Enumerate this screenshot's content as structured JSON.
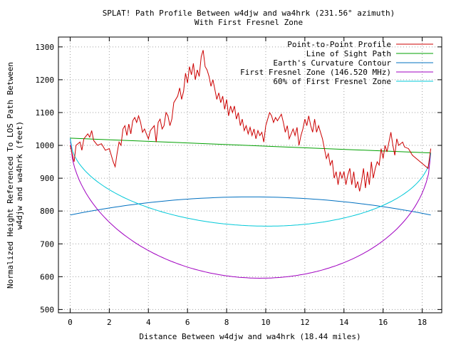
{
  "chart_data": {
    "type": "line",
    "title": "SPLAT! Path Profile Between w4djw and wa4hrk (231.56° azimuth)",
    "subtitle": "With First Fresnel Zone",
    "xlabel": "Distance Between w4djw and wa4hrk (18.44 miles)",
    "ylabel_line1": "Normalized Height Referenced To LOS Path Between",
    "ylabel_line2": "w4djw and wa4hrk (feet)",
    "xlim": [
      -0.6,
      19.0
    ],
    "ylim": [
      490,
      1330
    ],
    "xticks": [
      0,
      2,
      4,
      6,
      8,
      10,
      12,
      14,
      16,
      18
    ],
    "yticks": [
      500,
      600,
      700,
      800,
      900,
      1000,
      1100,
      1200,
      1300
    ],
    "grid": true,
    "legend_position": "top-right",
    "series": [
      {
        "name": "Point-to-Point Profile",
        "color": "#cc0000",
        "points": [
          [
            0,
            1000
          ],
          [
            0.2,
            950
          ],
          [
            0.3,
            1000
          ],
          [
            0.5,
            1010
          ],
          [
            0.6,
            985
          ],
          [
            0.7,
            1020
          ],
          [
            0.9,
            1035
          ],
          [
            1.0,
            1025
          ],
          [
            1.1,
            1045
          ],
          [
            1.2,
            1015
          ],
          [
            1.4,
            1000
          ],
          [
            1.6,
            1005
          ],
          [
            1.8,
            985
          ],
          [
            2.0,
            990
          ],
          [
            2.2,
            950
          ],
          [
            2.3,
            935
          ],
          [
            2.4,
            975
          ],
          [
            2.5,
            1010
          ],
          [
            2.6,
            1000
          ],
          [
            2.7,
            1050
          ],
          [
            2.8,
            1060
          ],
          [
            2.9,
            1030
          ],
          [
            3.0,
            1065
          ],
          [
            3.1,
            1035
          ],
          [
            3.2,
            1075
          ],
          [
            3.3,
            1085
          ],
          [
            3.4,
            1070
          ],
          [
            3.5,
            1090
          ],
          [
            3.6,
            1070
          ],
          [
            3.7,
            1040
          ],
          [
            3.8,
            1050
          ],
          [
            3.9,
            1035
          ],
          [
            4.0,
            1020
          ],
          [
            4.1,
            1045
          ],
          [
            4.3,
            1060
          ],
          [
            4.4,
            1010
          ],
          [
            4.5,
            1070
          ],
          [
            4.6,
            1080
          ],
          [
            4.7,
            1050
          ],
          [
            4.8,
            1060
          ],
          [
            4.9,
            1100
          ],
          [
            5.0,
            1090
          ],
          [
            5.1,
            1060
          ],
          [
            5.2,
            1080
          ],
          [
            5.3,
            1130
          ],
          [
            5.5,
            1150
          ],
          [
            5.6,
            1175
          ],
          [
            5.7,
            1140
          ],
          [
            5.8,
            1165
          ],
          [
            5.9,
            1220
          ],
          [
            6.0,
            1190
          ],
          [
            6.1,
            1240
          ],
          [
            6.2,
            1215
          ],
          [
            6.3,
            1250
          ],
          [
            6.4,
            1200
          ],
          [
            6.5,
            1230
          ],
          [
            6.6,
            1210
          ],
          [
            6.7,
            1270
          ],
          [
            6.8,
            1290
          ],
          [
            6.9,
            1240
          ],
          [
            7.0,
            1230
          ],
          [
            7.1,
            1210
          ],
          [
            7.2,
            1180
          ],
          [
            7.3,
            1200
          ],
          [
            7.4,
            1170
          ],
          [
            7.5,
            1140
          ],
          [
            7.6,
            1160
          ],
          [
            7.7,
            1130
          ],
          [
            7.8,
            1150
          ],
          [
            7.9,
            1110
          ],
          [
            8.0,
            1140
          ],
          [
            8.1,
            1090
          ],
          [
            8.2,
            1120
          ],
          [
            8.3,
            1100
          ],
          [
            8.4,
            1120
          ],
          [
            8.5,
            1080
          ],
          [
            8.6,
            1100
          ],
          [
            8.7,
            1060
          ],
          [
            8.8,
            1080
          ],
          [
            8.9,
            1045
          ],
          [
            9.0,
            1060
          ],
          [
            9.1,
            1035
          ],
          [
            9.2,
            1055
          ],
          [
            9.3,
            1030
          ],
          [
            9.4,
            1050
          ],
          [
            9.5,
            1020
          ],
          [
            9.6,
            1045
          ],
          [
            9.7,
            1030
          ],
          [
            9.8,
            1040
          ],
          [
            9.9,
            1010
          ],
          [
            10.0,
            1060
          ],
          [
            10.1,
            1080
          ],
          [
            10.2,
            1100
          ],
          [
            10.3,
            1090
          ],
          [
            10.4,
            1070
          ],
          [
            10.5,
            1085
          ],
          [
            10.6,
            1075
          ],
          [
            10.8,
            1095
          ],
          [
            10.9,
            1070
          ],
          [
            11.0,
            1040
          ],
          [
            11.1,
            1060
          ],
          [
            11.2,
            1020
          ],
          [
            11.4,
            1050
          ],
          [
            11.5,
            1030
          ],
          [
            11.6,
            1055
          ],
          [
            11.7,
            1000
          ],
          [
            11.8,
            1030
          ],
          [
            11.9,
            1050
          ],
          [
            12.0,
            1080
          ],
          [
            12.1,
            1060
          ],
          [
            12.2,
            1090
          ],
          [
            12.3,
            1060
          ],
          [
            12.4,
            1040
          ],
          [
            12.5,
            1080
          ],
          [
            12.6,
            1040
          ],
          [
            12.7,
            1060
          ],
          [
            12.8,
            1040
          ],
          [
            12.9,
            1020
          ],
          [
            13.0,
            990
          ],
          [
            13.1,
            960
          ],
          [
            13.2,
            975
          ],
          [
            13.3,
            940
          ],
          [
            13.4,
            955
          ],
          [
            13.5,
            900
          ],
          [
            13.6,
            920
          ],
          [
            13.7,
            880
          ],
          [
            13.8,
            920
          ],
          [
            13.9,
            900
          ],
          [
            14.0,
            920
          ],
          [
            14.1,
            880
          ],
          [
            14.2,
            910
          ],
          [
            14.3,
            930
          ],
          [
            14.4,
            880
          ],
          [
            14.5,
            920
          ],
          [
            14.6,
            870
          ],
          [
            14.7,
            890
          ],
          [
            14.8,
            860
          ],
          [
            14.9,
            890
          ],
          [
            15.0,
            930
          ],
          [
            15.1,
            870
          ],
          [
            15.2,
            920
          ],
          [
            15.3,
            880
          ],
          [
            15.4,
            950
          ],
          [
            15.5,
            900
          ],
          [
            15.6,
            930
          ],
          [
            15.7,
            950
          ],
          [
            15.8,
            940
          ],
          [
            15.9,
            990
          ],
          [
            16.0,
            960
          ],
          [
            16.1,
            1000
          ],
          [
            16.2,
            980
          ],
          [
            16.3,
            1010
          ],
          [
            16.4,
            1040
          ],
          [
            16.5,
            1000
          ],
          [
            16.6,
            970
          ],
          [
            16.7,
            1020
          ],
          [
            16.8,
            1000
          ],
          [
            17.0,
            1010
          ],
          [
            17.1,
            995
          ],
          [
            17.3,
            990
          ],
          [
            17.5,
            970
          ],
          [
            17.7,
            960
          ],
          [
            17.9,
            950
          ],
          [
            18.1,
            940
          ],
          [
            18.3,
            930
          ],
          [
            18.44,
            990
          ]
        ]
      },
      {
        "name": "Line of Sight Path",
        "color": "#00a000",
        "points": [
          [
            0,
            1022
          ],
          [
            18.44,
            977
          ]
        ]
      },
      {
        "name": "Earth's Curvature Contour",
        "color": "#0070c0",
        "x_range": [
          0,
          18.44
        ],
        "end_value": 788,
        "mid_value": 843
      },
      {
        "name": "First Fresnel Zone (146.520 MHz)",
        "color": "#a000c0",
        "x_range": [
          0,
          18.44
        ],
        "left_end": 1022,
        "right_end": 977,
        "min_value": 596
      },
      {
        "name": "60% of First Fresnel Zone",
        "color": "#00c8d8",
        "x_range": [
          0,
          18.44
        ],
        "left_end": 1022,
        "right_end": 977,
        "min_value": 755
      }
    ]
  }
}
